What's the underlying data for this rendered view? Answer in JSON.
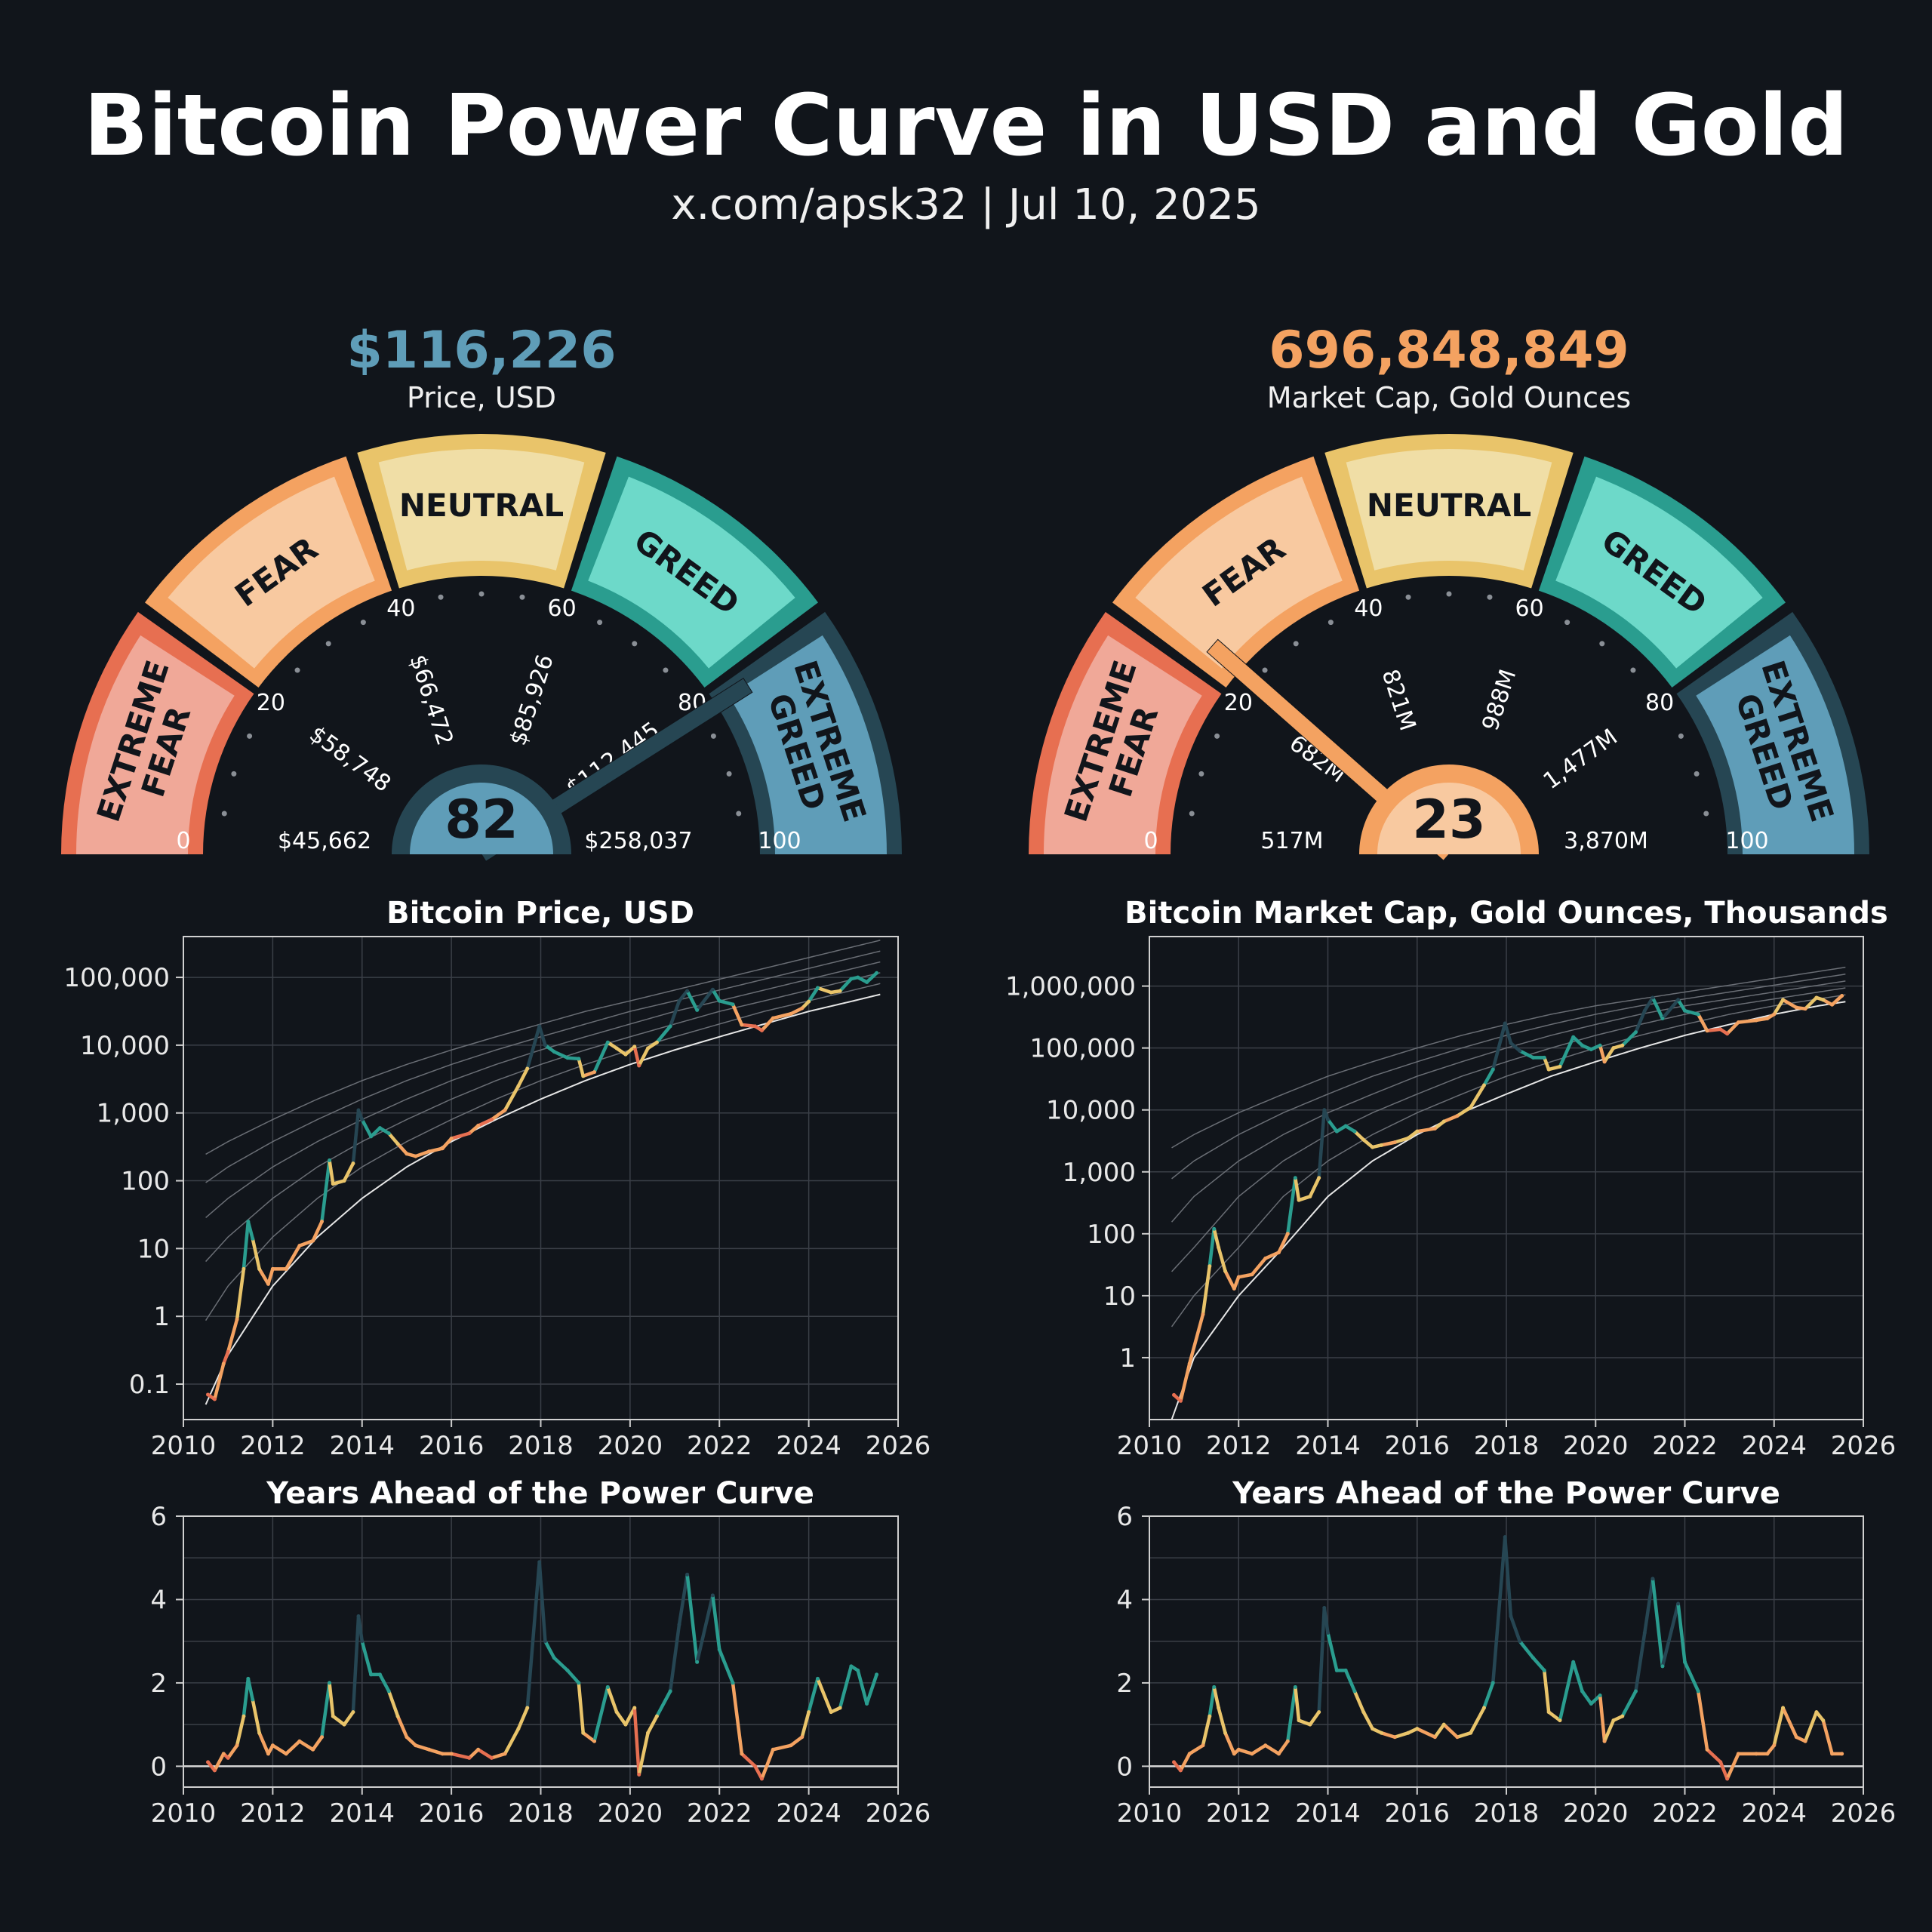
{
  "header": {
    "title": "Bitcoin Power Curve in USD and Gold",
    "subtitle": "x.com/apsk32 | Jul 10, 2025"
  },
  "colors": {
    "background": "#11151b",
    "extreme_fear": {
      "border": "#e76f51",
      "fill": "#f0a898"
    },
    "fear": {
      "border": "#f4a261",
      "fill": "#f8c9a0"
    },
    "neutral": {
      "border": "#e9c46a",
      "fill": "#f0dea6"
    },
    "greed": {
      "border": "#2a9d8f",
      "fill": "#6dd9c9"
    },
    "extreme_greed": {
      "border": "#264653",
      "fill": "#5f9db8"
    }
  },
  "zones": [
    {
      "key": "extreme_fear",
      "lines": [
        "EXTREME",
        "FEAR"
      ]
    },
    {
      "key": "fear",
      "lines": [
        "FEAR"
      ]
    },
    {
      "key": "neutral",
      "lines": [
        "NEUTRAL"
      ]
    },
    {
      "key": "greed",
      "lines": [
        "GREED"
      ]
    },
    {
      "key": "extreme_greed",
      "lines": [
        "EXTREME",
        "GREED"
      ]
    }
  ],
  "gauges": [
    {
      "headline": "$116,226",
      "headline_color": "#5f9db8",
      "label": "Price, USD",
      "score": 82,
      "score_text": "82",
      "scale_ticks": [
        "0",
        "20",
        "40",
        "60",
        "80",
        "100"
      ],
      "value_labels": [
        "$45,662",
        "$58,748",
        "$66,472",
        "$85,926",
        "$112,445",
        "$258,037"
      ]
    },
    {
      "headline": "696,848,849",
      "headline_color": "#f4a261",
      "label": "Market Cap, Gold Ounces",
      "score": 23,
      "score_text": "23",
      "scale_ticks": [
        "0",
        "20",
        "40",
        "60",
        "80",
        "100"
      ],
      "value_labels": [
        "517M",
        "682M",
        "821M",
        "988M",
        "1,477M",
        "3,870M"
      ]
    }
  ],
  "chart_data": [
    {
      "type": "line",
      "title": "Bitcoin Price, USD",
      "yscale": "log",
      "xlim": [
        2010,
        2026
      ],
      "ylim": [
        0.03,
        400000
      ],
      "grid": true,
      "xticks": [
        "2010",
        "2012",
        "2014",
        "2016",
        "2018",
        "2020",
        "2022",
        "2024",
        "2026"
      ],
      "yticks": [
        "0.1",
        "1",
        "10",
        "100",
        "1,000",
        "10,000",
        "100,000"
      ],
      "x": [
        2010.55,
        2010.7,
        2010.9,
        2011.0,
        2011.2,
        2011.35,
        2011.45,
        2011.55,
        2011.7,
        2011.9,
        2012.0,
        2012.3,
        2012.6,
        2012.9,
        2013.1,
        2013.27,
        2013.35,
        2013.6,
        2013.8,
        2013.92,
        2014.0,
        2014.2,
        2014.4,
        2014.6,
        2014.8,
        2015.0,
        2015.2,
        2015.5,
        2015.8,
        2016.0,
        2016.4,
        2016.6,
        2016.9,
        2017.2,
        2017.5,
        2017.7,
        2017.97,
        2018.1,
        2018.3,
        2018.6,
        2018.85,
        2018.95,
        2019.2,
        2019.5,
        2019.7,
        2019.9,
        2020.1,
        2020.2,
        2020.4,
        2020.6,
        2020.9,
        2021.1,
        2021.28,
        2021.5,
        2021.85,
        2022.0,
        2022.3,
        2022.5,
        2022.8,
        2022.95,
        2023.2,
        2023.6,
        2023.85,
        2024.0,
        2024.2,
        2024.5,
        2024.7,
        2024.95,
        2025.1,
        2025.3,
        2025.52
      ],
      "values": [
        0.07,
        0.06,
        0.2,
        0.3,
        0.9,
        5,
        25,
        14,
        5,
        3,
        5,
        5,
        11,
        13,
        25,
        200,
        90,
        100,
        180,
        1100,
        800,
        450,
        600,
        500,
        350,
        250,
        230,
        270,
        300,
        420,
        500,
        650,
        800,
        1100,
        2500,
        4500,
        19000,
        10000,
        8000,
        6500,
        6300,
        3500,
        4000,
        11000,
        9000,
        7300,
        9500,
        5000,
        9000,
        11000,
        19000,
        45000,
        63000,
        33000,
        66000,
        45000,
        40000,
        20000,
        19000,
        16500,
        25000,
        29000,
        35000,
        44000,
        70000,
        60000,
        63000,
        95000,
        100000,
        85000,
        116000
      ],
      "power_curve": {
        "x": [
          2010.5,
          2011,
          2012,
          2013,
          2014,
          2015,
          2016,
          2017,
          2018,
          2019,
          2020,
          2021,
          2022,
          2023,
          2024,
          2025,
          2026
        ],
        "values": [
          0.05,
          0.27,
          2.8,
          14.8,
          55,
          160,
          378,
          800,
          1600,
          3000,
          5200,
          8500,
          13300,
          20500,
          31500,
          45000,
          65000
        ]
      },
      "band_years_ahead": [
        1,
        2,
        3,
        4,
        5
      ]
    },
    {
      "type": "line",
      "title": "Bitcoin Market Cap, Gold Ounces, Thousands",
      "yscale": "log",
      "xlim": [
        2010,
        2026
      ],
      "ylim": [
        0.1,
        6300000
      ],
      "grid": true,
      "xticks": [
        "2010",
        "2012",
        "2014",
        "2016",
        "2018",
        "2020",
        "2022",
        "2024",
        "2026"
      ],
      "yticks": [
        "1",
        "10",
        "100",
        "1,000",
        "10,000",
        "100,000",
        "1,000,000"
      ],
      "x": [
        2010.55,
        2010.7,
        2010.9,
        2011.2,
        2011.35,
        2011.45,
        2011.55,
        2011.7,
        2011.9,
        2012.0,
        2012.3,
        2012.6,
        2012.9,
        2013.1,
        2013.27,
        2013.35,
        2013.6,
        2013.8,
        2013.92,
        2014.0,
        2014.2,
        2014.4,
        2014.6,
        2014.8,
        2015.0,
        2015.2,
        2015.5,
        2015.8,
        2016.0,
        2016.4,
        2016.6,
        2016.9,
        2017.2,
        2017.5,
        2017.7,
        2017.97,
        2018.1,
        2018.3,
        2018.6,
        2018.85,
        2018.95,
        2019.2,
        2019.5,
        2019.7,
        2019.9,
        2020.1,
        2020.2,
        2020.4,
        2020.6,
        2020.9,
        2021.1,
        2021.28,
        2021.5,
        2021.85,
        2022.0,
        2022.3,
        2022.5,
        2022.8,
        2022.95,
        2023.2,
        2023.6,
        2023.85,
        2024.0,
        2024.2,
        2024.5,
        2024.7,
        2024.95,
        2025.1,
        2025.3,
        2025.52
      ],
      "values": [
        0.25,
        0.2,
        0.8,
        5,
        30,
        120,
        60,
        25,
        13,
        20,
        22,
        40,
        50,
        100,
        800,
        350,
        400,
        800,
        10000,
        7000,
        4500,
        5500,
        4500,
        3300,
        2500,
        2700,
        3000,
        3500,
        4500,
        5000,
        6500,
        8000,
        11000,
        25000,
        45000,
        250000,
        120000,
        90000,
        70000,
        70000,
        45000,
        50000,
        150000,
        110000,
        95000,
        110000,
        60000,
        100000,
        110000,
        180000,
        400000,
        650000,
        300000,
        600000,
        400000,
        350000,
        190000,
        200000,
        170000,
        260000,
        280000,
        300000,
        350000,
        600000,
        450000,
        430000,
        650000,
        600000,
        500000,
        697000
      ],
      "power_curve": {
        "x": [
          2010.5,
          2011,
          2012,
          2013,
          2014,
          2015,
          2016,
          2017,
          2018,
          2019,
          2020,
          2021,
          2022,
          2023,
          2024,
          2025,
          2026
        ],
        "values": [
          0.1,
          1,
          10,
          60,
          400,
          1500,
          4000,
          9000,
          18000,
          35000,
          60000,
          100000,
          160000,
          240000,
          350000,
          480000,
          620000
        ]
      },
      "band_years_ahead": [
        1,
        2,
        3,
        4,
        5
      ]
    },
    {
      "type": "line",
      "title": "Years Ahead of the Power Curve",
      "xlim": [
        2010,
        2026
      ],
      "ylim": [
        -0.5,
        6
      ],
      "grid": true,
      "xticks": [
        "2010",
        "2012",
        "2014",
        "2016",
        "2018",
        "2020",
        "2022",
        "2024",
        "2026"
      ],
      "yticks": [
        "0",
        "2",
        "4",
        "6"
      ],
      "x": [
        2010.55,
        2010.7,
        2010.9,
        2011.0,
        2011.2,
        2011.35,
        2011.45,
        2011.55,
        2011.7,
        2011.9,
        2012.0,
        2012.3,
        2012.6,
        2012.9,
        2013.1,
        2013.27,
        2013.35,
        2013.6,
        2013.8,
        2013.92,
        2014.0,
        2014.2,
        2014.4,
        2014.6,
        2014.8,
        2015.0,
        2015.2,
        2015.5,
        2015.8,
        2016.0,
        2016.4,
        2016.6,
        2016.9,
        2017.2,
        2017.5,
        2017.7,
        2017.97,
        2018.1,
        2018.3,
        2018.6,
        2018.85,
        2018.95,
        2019.2,
        2019.5,
        2019.7,
        2019.9,
        2020.1,
        2020.2,
        2020.4,
        2020.6,
        2020.9,
        2021.1,
        2021.28,
        2021.5,
        2021.85,
        2022.0,
        2022.3,
        2022.5,
        2022.8,
        2022.95,
        2023.2,
        2023.6,
        2023.85,
        2024.0,
        2024.2,
        2024.5,
        2024.7,
        2024.95,
        2025.1,
        2025.3,
        2025.52
      ],
      "values": [
        0.1,
        -0.1,
        0.3,
        0.2,
        0.5,
        1.2,
        2.1,
        1.6,
        0.8,
        0.3,
        0.5,
        0.3,
        0.6,
        0.4,
        0.7,
        2.0,
        1.2,
        1.0,
        1.3,
        3.6,
        3.0,
        2.2,
        2.2,
        1.8,
        1.2,
        0.7,
        0.5,
        0.4,
        0.3,
        0.3,
        0.2,
        0.4,
        0.2,
        0.3,
        0.9,
        1.4,
        4.9,
        3.0,
        2.6,
        2.3,
        2.0,
        0.8,
        0.6,
        1.9,
        1.3,
        1.0,
        1.4,
        -0.2,
        0.8,
        1.2,
        1.8,
        3.4,
        4.6,
        2.5,
        4.1,
        2.8,
        2.0,
        0.3,
        0.0,
        -0.3,
        0.4,
        0.5,
        0.7,
        1.3,
        2.1,
        1.3,
        1.4,
        2.4,
        2.3,
        1.5,
        2.2
      ]
    },
    {
      "type": "line",
      "title": "Years Ahead of the Power Curve",
      "xlim": [
        2010,
        2026
      ],
      "ylim": [
        -0.5,
        6
      ],
      "grid": true,
      "xticks": [
        "2010",
        "2012",
        "2014",
        "2016",
        "2018",
        "2020",
        "2022",
        "2024",
        "2026"
      ],
      "yticks": [
        "0",
        "2",
        "4",
        "6"
      ],
      "x": [
        2010.55,
        2010.7,
        2010.9,
        2011.2,
        2011.35,
        2011.45,
        2011.55,
        2011.7,
        2011.9,
        2012.0,
        2012.3,
        2012.6,
        2012.9,
        2013.1,
        2013.27,
        2013.35,
        2013.6,
        2013.8,
        2013.92,
        2014.0,
        2014.2,
        2014.4,
        2014.6,
        2014.8,
        2015.0,
        2015.2,
        2015.5,
        2015.8,
        2016.0,
        2016.4,
        2016.6,
        2016.9,
        2017.2,
        2017.5,
        2017.7,
        2017.97,
        2018.1,
        2018.3,
        2018.6,
        2018.85,
        2018.95,
        2019.2,
        2019.5,
        2019.7,
        2019.9,
        2020.1,
        2020.2,
        2020.4,
        2020.6,
        2020.9,
        2021.1,
        2021.28,
        2021.5,
        2021.85,
        2022.0,
        2022.3,
        2022.5,
        2022.8,
        2022.95,
        2023.2,
        2023.6,
        2023.85,
        2024.0,
        2024.2,
        2024.5,
        2024.7,
        2024.95,
        2025.1,
        2025.3,
        2025.52
      ],
      "values": [
        0.1,
        -0.1,
        0.3,
        0.5,
        1.2,
        1.9,
        1.4,
        0.8,
        0.3,
        0.4,
        0.3,
        0.5,
        0.3,
        0.6,
        1.9,
        1.1,
        1.0,
        1.3,
        3.8,
        3.2,
        2.3,
        2.3,
        1.8,
        1.3,
        0.9,
        0.8,
        0.7,
        0.8,
        0.9,
        0.7,
        1.0,
        0.7,
        0.8,
        1.4,
        2.0,
        5.5,
        3.6,
        3.0,
        2.6,
        2.3,
        1.3,
        1.1,
        2.5,
        1.8,
        1.5,
        1.7,
        0.6,
        1.1,
        1.2,
        1.8,
        3.2,
        4.5,
        2.4,
        3.9,
        2.5,
        1.8,
        0.4,
        0.1,
        -0.3,
        0.3,
        0.3,
        0.3,
        0.5,
        1.4,
        0.7,
        0.6,
        1.3,
        1.1,
        0.3,
        0.3
      ]
    }
  ]
}
